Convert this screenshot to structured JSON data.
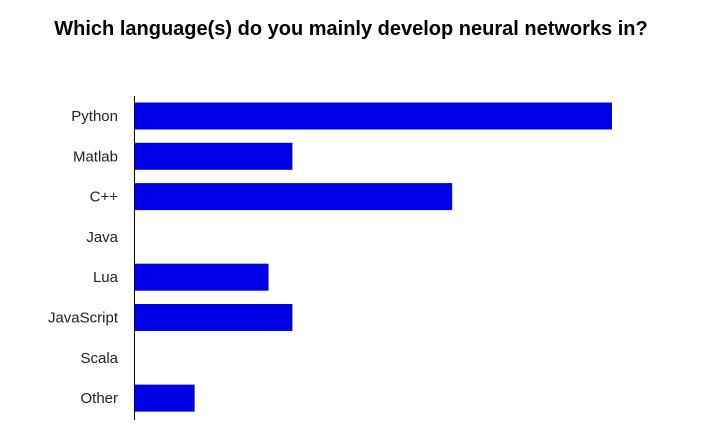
{
  "chart_data": {
    "type": "bar",
    "orientation": "horizontal",
    "title": "Which language(s) do you mainly develop neural networks in?",
    "categories": [
      "Python",
      "Matlab",
      "C++",
      "Java",
      "Lua",
      "JavaScript",
      "Scala",
      "Other"
    ],
    "values": [
      20,
      6.6,
      13.3,
      0,
      5.6,
      6.6,
      0,
      2.5
    ],
    "xlim": [
      0,
      20
    ],
    "grid": false,
    "legend": "none",
    "bar_color": "#0000e6",
    "axis_color": "#000000"
  }
}
